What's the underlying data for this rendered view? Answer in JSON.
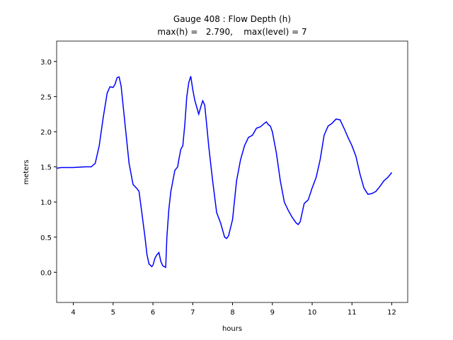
{
  "chart_data": {
    "type": "line",
    "title": [
      "Gauge 408 : Flow Depth (h)",
      "max(h) =   2.790,    max(level) = 7"
    ],
    "xlabel": "hours",
    "ylabel": "meters",
    "xlim": [
      3.58,
      12.4
    ],
    "ylim": [
      -0.43,
      3.29
    ],
    "xticks": [
      4,
      5,
      6,
      7,
      8,
      9,
      10,
      11,
      12
    ],
    "yticks": [
      {
        "value": 0,
        "label": "0.0"
      },
      0.5,
      {
        "value": 1,
        "label": "1.0"
      },
      1.5,
      {
        "value": 2,
        "label": "2.0"
      },
      2.5,
      {
        "value": 3,
        "label": "3.0"
      }
    ],
    "series": [
      {
        "color": "#0000ff",
        "x": [
          3.58,
          3.7,
          4.0,
          4.3,
          4.45,
          4.55,
          4.65,
          4.75,
          4.85,
          4.92,
          5.0,
          5.05,
          5.1,
          5.15,
          5.2,
          5.3,
          5.4,
          5.5,
          5.6,
          5.65,
          5.72,
          5.8,
          5.85,
          5.9,
          5.97,
          6.0,
          6.05,
          6.1,
          6.15,
          6.2,
          6.25,
          6.32,
          6.35,
          6.4,
          6.45,
          6.5,
          6.55,
          6.62,
          6.65,
          6.7,
          6.75,
          6.8,
          6.85,
          6.9,
          6.95,
          7.0,
          7.05,
          7.1,
          7.15,
          7.2,
          7.25,
          7.3,
          7.35,
          7.4,
          7.5,
          7.6,
          7.7,
          7.75,
          7.8,
          7.85,
          7.9,
          8.0,
          8.1,
          8.2,
          8.3,
          8.4,
          8.5,
          8.6,
          8.7,
          8.8,
          8.85,
          8.9,
          8.95,
          9.0,
          9.1,
          9.2,
          9.3,
          9.4,
          9.5,
          9.6,
          9.65,
          9.7,
          9.8,
          9.9,
          10.0,
          10.1,
          10.2,
          10.3,
          10.4,
          10.5,
          10.6,
          10.7,
          10.8,
          10.9,
          11.0,
          11.1,
          11.2,
          11.3,
          11.4,
          11.5,
          11.6,
          11.7,
          11.8,
          11.9,
          12.0
        ],
        "values": [
          1.48,
          1.49,
          1.49,
          1.5,
          1.5,
          1.55,
          1.8,
          2.2,
          2.55,
          2.64,
          2.63,
          2.68,
          2.77,
          2.78,
          2.65,
          2.1,
          1.55,
          1.25,
          1.19,
          1.15,
          0.85,
          0.5,
          0.25,
          0.12,
          0.08,
          0.1,
          0.2,
          0.25,
          0.28,
          0.15,
          0.09,
          0.07,
          0.5,
          0.9,
          1.15,
          1.3,
          1.45,
          1.5,
          1.6,
          1.75,
          1.8,
          2.1,
          2.5,
          2.7,
          2.79,
          2.6,
          2.45,
          2.35,
          2.25,
          2.35,
          2.44,
          2.38,
          2.1,
          1.8,
          1.3,
          0.85,
          0.7,
          0.6,
          0.5,
          0.48,
          0.52,
          0.75,
          1.3,
          1.6,
          1.8,
          1.92,
          1.95,
          2.05,
          2.07,
          2.12,
          2.14,
          2.1,
          2.08,
          2.0,
          1.7,
          1.3,
          1.0,
          0.88,
          0.78,
          0.7,
          0.68,
          0.72,
          0.98,
          1.03,
          1.2,
          1.35,
          1.6,
          1.95,
          2.08,
          2.12,
          2.18,
          2.17,
          2.05,
          1.92,
          1.8,
          1.65,
          1.4,
          1.2,
          1.11,
          1.12,
          1.15,
          1.22,
          1.3,
          1.35,
          1.42
        ]
      }
    ]
  }
}
